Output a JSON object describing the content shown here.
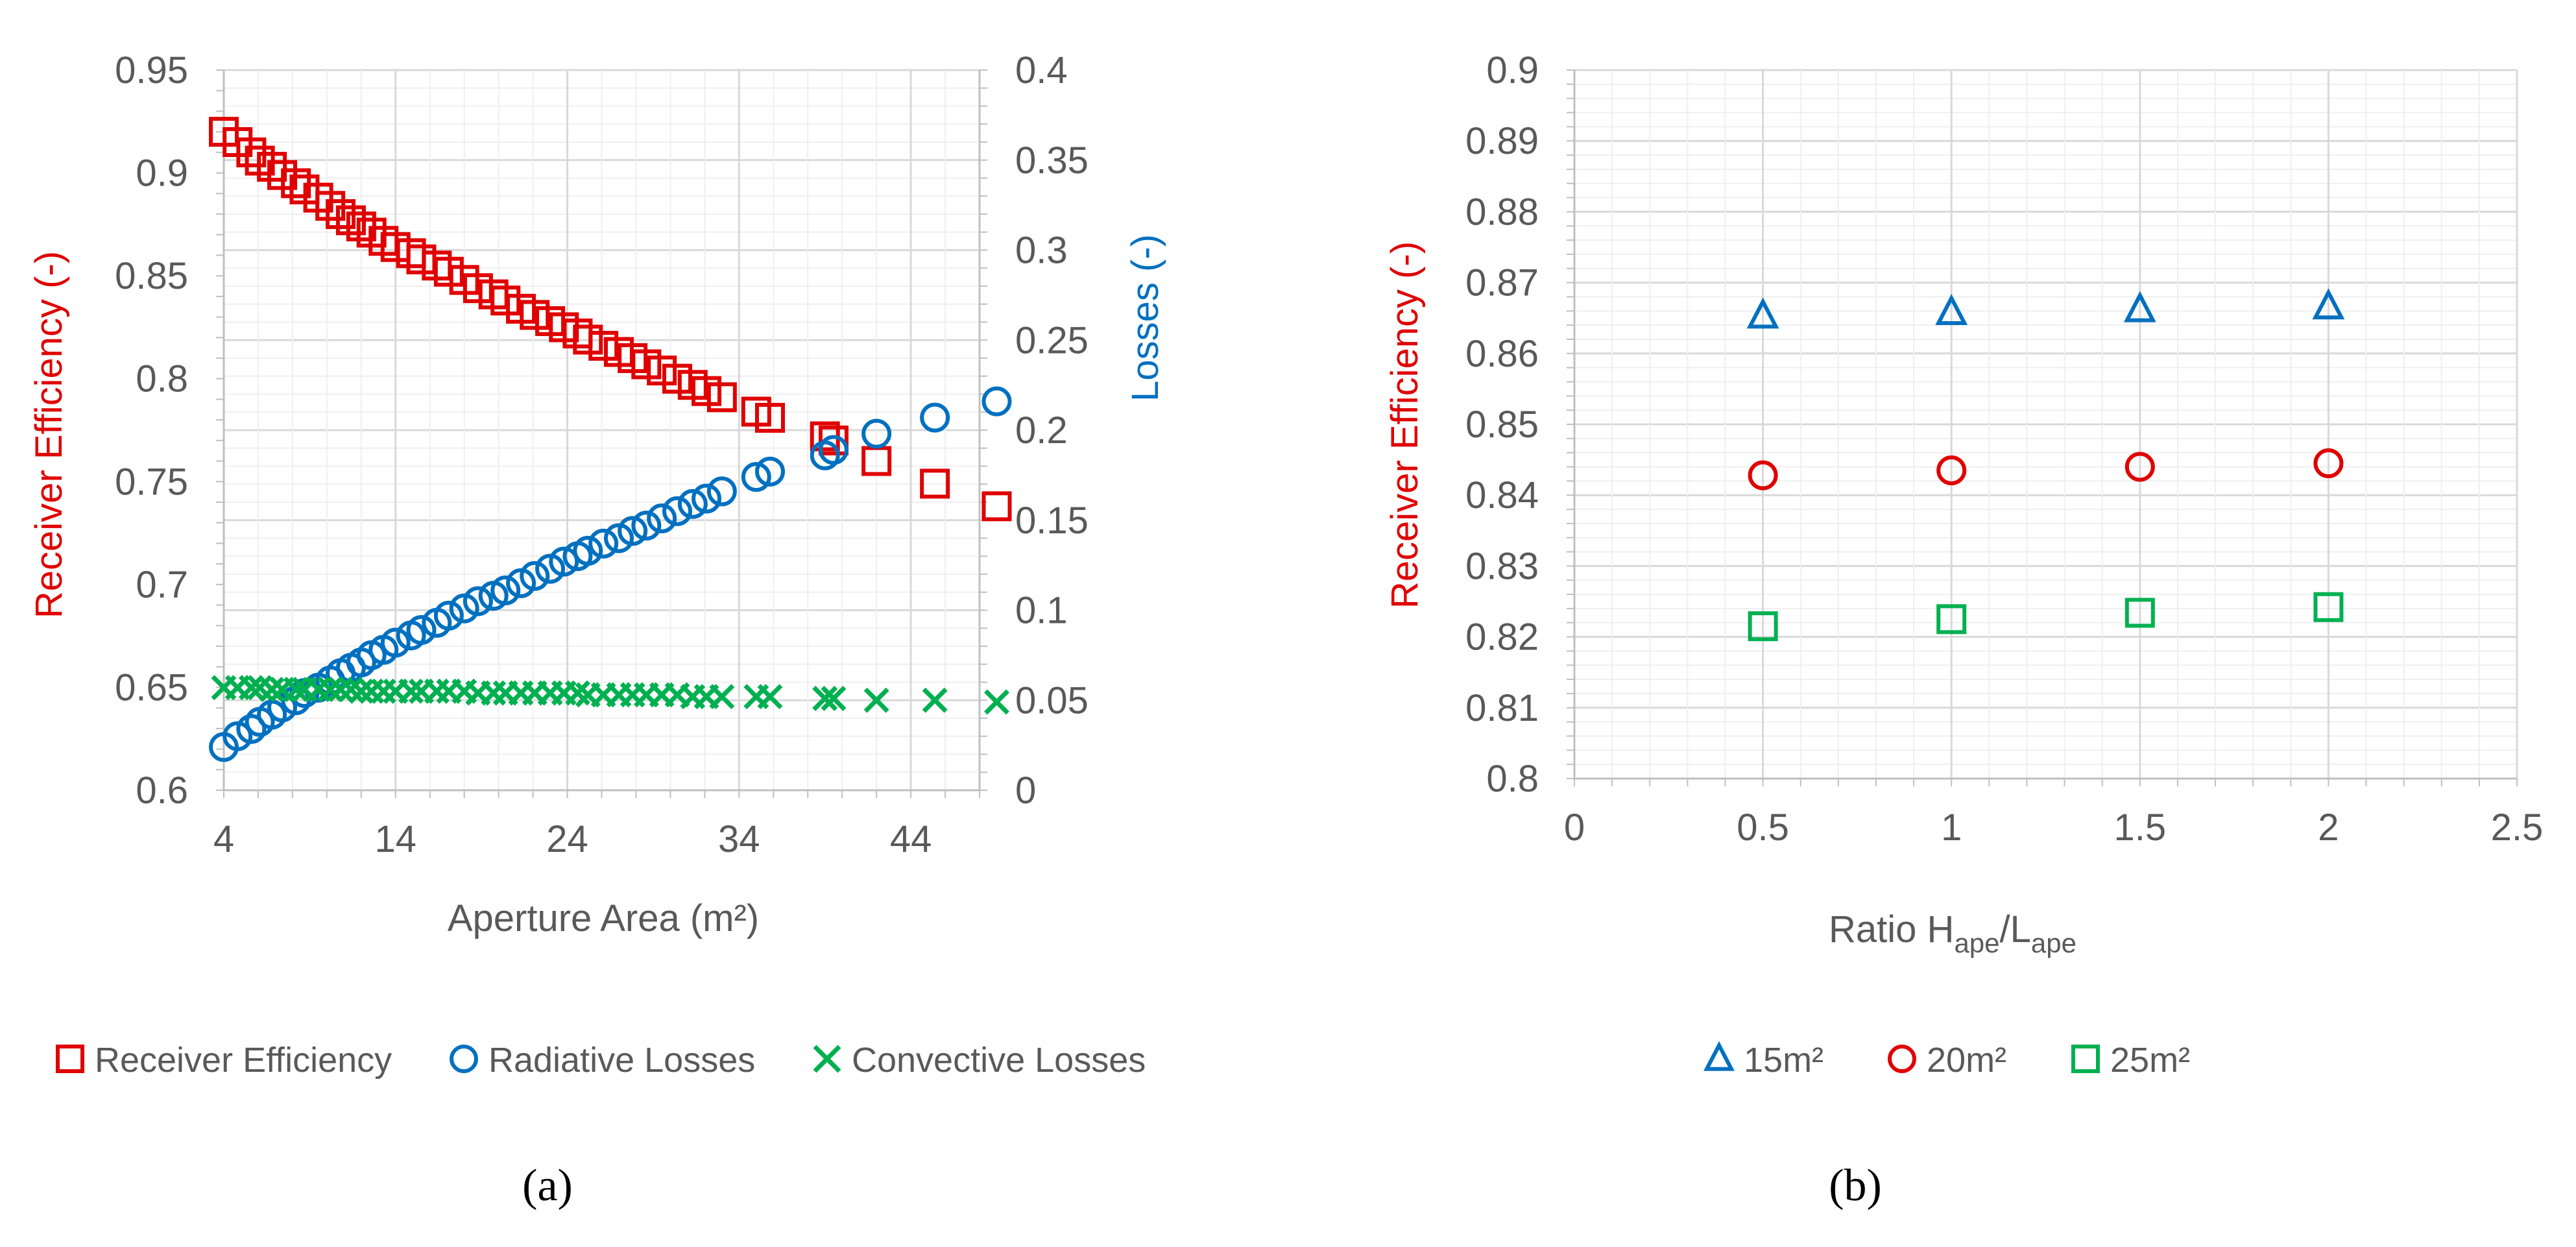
{
  "chart_data": [
    {
      "panel": "a",
      "panel_label": "(a)",
      "type": "scatter",
      "xlabel": "Aperture Area (m²)",
      "ylabel_left": "Receiver Efficiency (-)",
      "ylabel_right": "Losses (-)",
      "xlim": [
        4,
        48
      ],
      "ylim_left": [
        0.6,
        0.95
      ],
      "ylim_right": [
        0,
        0.4
      ],
      "x_ticks": [
        "4",
        "14",
        "24",
        "34",
        "44"
      ],
      "y_ticks_left": [
        "0.6",
        "0.65",
        "0.7",
        "0.75",
        "0.8",
        "0.85",
        "0.9",
        "0.95"
      ],
      "y_ticks_right": [
        "0",
        "0.05",
        "0.1",
        "0.15",
        "0.2",
        "0.25",
        "0.3",
        "0.35",
        "0.4"
      ],
      "x": [
        4.0,
        4.8,
        5.6,
        6.1,
        6.8,
        7.4,
        8.2,
        8.7,
        9.5,
        10.2,
        10.8,
        11.4,
        12.0,
        12.6,
        13.3,
        14.0,
        14.9,
        15.5,
        16.4,
        17.1,
        18.0,
        18.8,
        19.7,
        20.4,
        21.3,
        22.1,
        23.0,
        23.8,
        24.6,
        25.2,
        26.1,
        27.0,
        27.8,
        28.6,
        29.5,
        30.4,
        31.3,
        32.1,
        33.0,
        35.0,
        35.8,
        39.0,
        39.5,
        42.0,
        45.4,
        49.0
      ],
      "series": [
        {
          "name": "Receiver Efficiency",
          "axis": "left",
          "marker": "square",
          "color": "#e00000",
          "values": [
            0.92,
            0.915,
            0.91,
            0.906,
            0.903,
            0.899,
            0.895,
            0.892,
            0.888,
            0.884,
            0.88,
            0.877,
            0.874,
            0.871,
            0.867,
            0.864,
            0.861,
            0.858,
            0.855,
            0.852,
            0.848,
            0.844,
            0.841,
            0.838,
            0.834,
            0.831,
            0.828,
            0.825,
            0.822,
            0.819,
            0.816,
            0.813,
            0.81,
            0.807,
            0.804,
            0.8,
            0.797,
            0.794,
            0.791,
            0.784,
            0.781,
            0.772,
            0.77,
            0.76,
            0.749,
            0.738
          ]
        },
        {
          "name": "Radiative Losses",
          "axis": "right",
          "marker": "circle",
          "color": "#0070c0",
          "values": [
            0.024,
            0.03,
            0.034,
            0.038,
            0.042,
            0.046,
            0.05,
            0.054,
            0.057,
            0.061,
            0.065,
            0.068,
            0.071,
            0.075,
            0.078,
            0.082,
            0.086,
            0.089,
            0.093,
            0.097,
            0.101,
            0.105,
            0.108,
            0.111,
            0.115,
            0.119,
            0.123,
            0.127,
            0.13,
            0.133,
            0.137,
            0.14,
            0.144,
            0.147,
            0.151,
            0.155,
            0.159,
            0.162,
            0.166,
            0.174,
            0.177,
            0.186,
            0.189,
            0.198,
            0.207,
            0.216
          ]
        },
        {
          "name": "Convective Losses",
          "axis": "right",
          "marker": "x",
          "color": "#00b050",
          "values": [
            0.057,
            0.057,
            0.057,
            0.057,
            0.056,
            0.056,
            0.056,
            0.056,
            0.056,
            0.056,
            0.056,
            0.056,
            0.055,
            0.055,
            0.055,
            0.055,
            0.055,
            0.055,
            0.055,
            0.055,
            0.055,
            0.054,
            0.054,
            0.054,
            0.054,
            0.054,
            0.054,
            0.054,
            0.054,
            0.053,
            0.053,
            0.053,
            0.053,
            0.053,
            0.053,
            0.053,
            0.052,
            0.052,
            0.052,
            0.052,
            0.052,
            0.051,
            0.051,
            0.05,
            0.05,
            0.049
          ]
        }
      ],
      "legend": [
        "Receiver Efficiency",
        "Radiative Losses",
        "Convective Losses"
      ],
      "legend_position": "bottom",
      "grid": true
    },
    {
      "panel": "b",
      "panel_label": "(b)",
      "type": "scatter",
      "xlabel_main": "Ratio H",
      "xlabel_sub1": "ape",
      "xlabel_mid": "/L",
      "xlabel_sub2": "ape",
      "ylabel": "Receiver Efficiency (-)",
      "xlim": [
        0,
        2.5
      ],
      "ylim": [
        0.8,
        0.9
      ],
      "x_ticks": [
        "0",
        "0.5",
        "1",
        "1.5",
        "2",
        "2.5"
      ],
      "y_ticks": [
        "0.8",
        "0.81",
        "0.82",
        "0.83",
        "0.84",
        "0.85",
        "0.86",
        "0.87",
        "0.88",
        "0.89",
        "0.9"
      ],
      "x": [
        0.5,
        1.0,
        1.5,
        2.0
      ],
      "series": [
        {
          "name": "15m²",
          "marker": "triangle",
          "color": "#0070c0",
          "values": [
            0.8653,
            0.8658,
            0.8662,
            0.8666
          ]
        },
        {
          "name": "20m²",
          "marker": "circle",
          "color": "#e00000",
          "values": [
            0.8428,
            0.8435,
            0.844,
            0.8445
          ]
        },
        {
          "name": "25m²",
          "marker": "square",
          "color": "#00b050",
          "values": [
            0.8215,
            0.8225,
            0.8234,
            0.8242
          ]
        }
      ],
      "legend": [
        "15m²",
        "20m²",
        "25m²"
      ],
      "legend_position": "bottom",
      "grid": true
    }
  ]
}
